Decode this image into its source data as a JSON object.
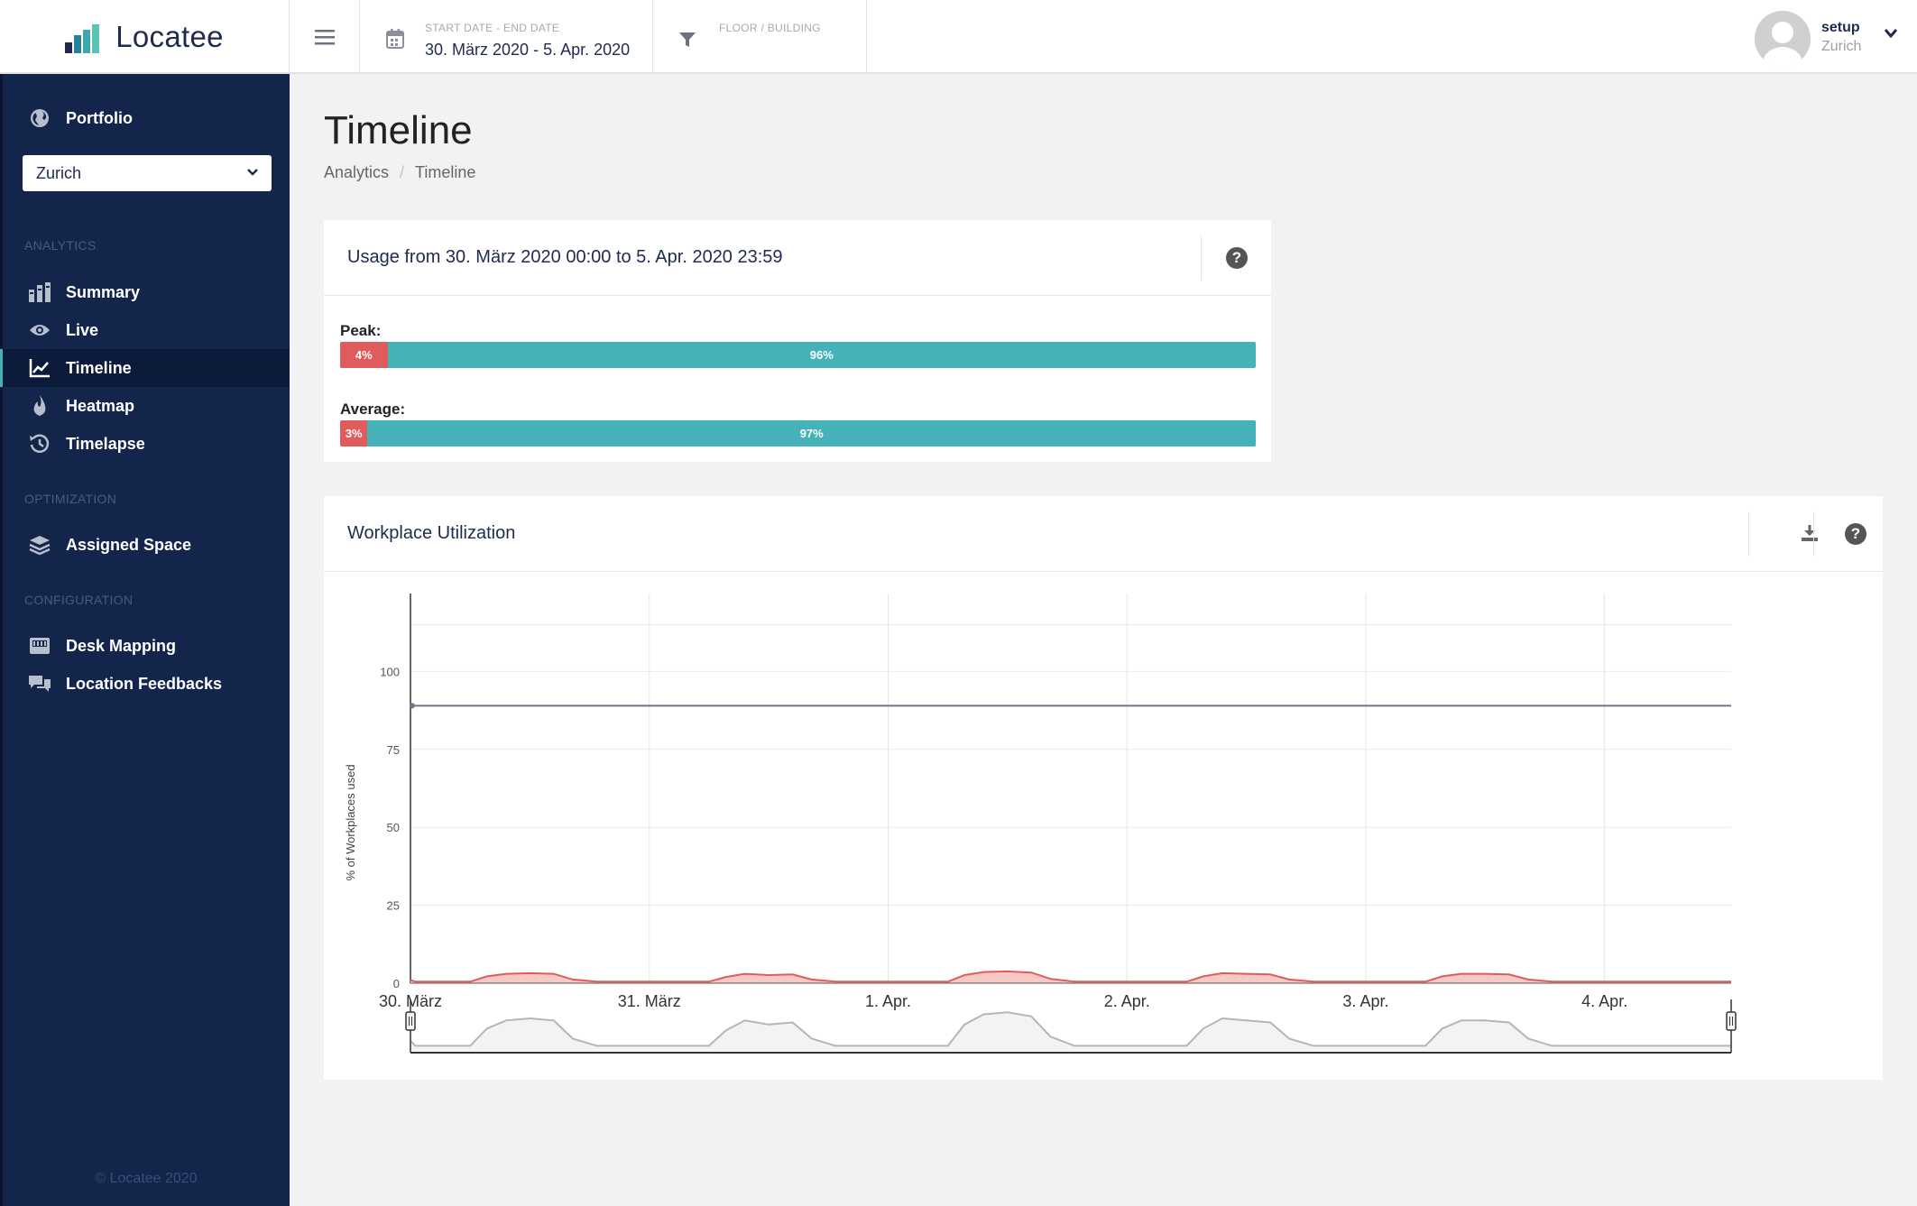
{
  "app": {
    "brand": "Locatee"
  },
  "topbar": {
    "date_label": "START DATE - END DATE",
    "date_value": "30. März 2020 - 5. Apr. 2020",
    "floor_label": "FLOOR / BUILDING"
  },
  "user": {
    "name": "setup",
    "location": "Zurich"
  },
  "sidebar": {
    "portfolio": "Portfolio",
    "location_value": "Zurich",
    "sections": {
      "analytics": "Analytics",
      "optimization": "Optimization",
      "configuration": "Configuration"
    },
    "items": {
      "summary": "Summary",
      "live": "Live",
      "timeline": "Timeline",
      "heatmap": "Heatmap",
      "timelapse": "Timelapse",
      "assigned_space": "Assigned Space",
      "desk_mapping": "Desk Mapping",
      "location_feedbacks": "Location Feedbacks"
    },
    "footer": "© Locatee 2020"
  },
  "page": {
    "title": "Timeline",
    "breadcrumb": [
      "Analytics",
      "Timeline"
    ]
  },
  "usage": {
    "title": "Usage from 30. März 2020 00:00 to 5. Apr. 2020 23:59",
    "help": "?",
    "peak_label": "Peak:",
    "peak_used": "4%",
    "peak_free": "96%",
    "peak_used_fraction": 0.04,
    "average_label": "Average:",
    "average_used": "3%",
    "average_free": "97%",
    "average_used_fraction": 0.03
  },
  "utilization": {
    "title": "Workplace Utilization",
    "help": "?"
  },
  "colors": {
    "sidebar": "#13254b",
    "accent_teal": "#45b1b9",
    "used_red": "#e05c5c",
    "capacity_line": "#6f7684",
    "area_fill": "#f8c9c4"
  },
  "chart_data": {
    "type": "area",
    "title": "",
    "xlabel": "",
    "ylabel": "% of Workplaces used",
    "ylim": [
      0,
      125
    ],
    "yticks": [
      0,
      25,
      50,
      75,
      100
    ],
    "x_tick_labels": [
      "30. März",
      "31. März",
      "1. Apr.",
      "2. Apr.",
      "3. Apr.",
      "4. Apr."
    ],
    "x_range_days": [
      0,
      5.53
    ],
    "series": [
      {
        "name": "",
        "kind": "line",
        "points": [
          [
            0,
            89
          ],
          [
            5.53,
            89
          ]
        ]
      },
      {
        "name": "",
        "kind": "area",
        "points": [
          [
            0,
            1
          ],
          [
            0.02,
            0.5
          ],
          [
            0.25,
            0.5
          ],
          [
            0.32,
            2.2
          ],
          [
            0.4,
            3.0
          ],
          [
            0.5,
            3.2
          ],
          [
            0.6,
            3.0
          ],
          [
            0.68,
            1.2
          ],
          [
            0.78,
            0.5
          ],
          [
            1.0,
            0.5
          ],
          [
            1.25,
            0.5
          ],
          [
            1.32,
            2.0
          ],
          [
            1.4,
            3.0
          ],
          [
            1.5,
            2.6
          ],
          [
            1.6,
            2.8
          ],
          [
            1.68,
            1.2
          ],
          [
            1.78,
            0.5
          ],
          [
            2.0,
            0.5
          ],
          [
            2.25,
            0.5
          ],
          [
            2.32,
            2.6
          ],
          [
            2.4,
            3.6
          ],
          [
            2.5,
            3.8
          ],
          [
            2.6,
            3.4
          ],
          [
            2.68,
            1.4
          ],
          [
            2.78,
            0.5
          ],
          [
            3.0,
            0.5
          ],
          [
            3.25,
            0.5
          ],
          [
            3.32,
            2.2
          ],
          [
            3.4,
            3.2
          ],
          [
            3.5,
            3.0
          ],
          [
            3.6,
            2.8
          ],
          [
            3.68,
            1.2
          ],
          [
            3.78,
            0.5
          ],
          [
            4.0,
            0.5
          ],
          [
            4.25,
            0.5
          ],
          [
            4.32,
            2.2
          ],
          [
            4.4,
            3.0
          ],
          [
            4.5,
            3.0
          ],
          [
            4.6,
            2.8
          ],
          [
            4.68,
            1.2
          ],
          [
            4.78,
            0.5
          ],
          [
            5.0,
            0.5
          ],
          [
            5.53,
            0.5
          ]
        ]
      }
    ],
    "grid": true,
    "legend": "none"
  }
}
